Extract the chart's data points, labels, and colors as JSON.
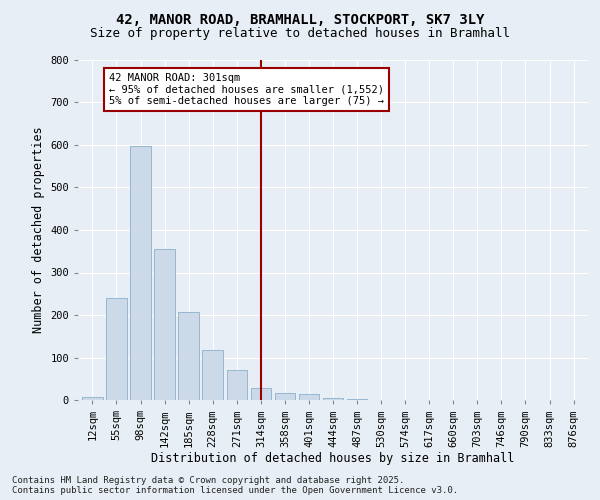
{
  "title": "42, MANOR ROAD, BRAMHALL, STOCKPORT, SK7 3LY",
  "subtitle": "Size of property relative to detached houses in Bramhall",
  "xlabel": "Distribution of detached houses by size in Bramhall",
  "ylabel": "Number of detached properties",
  "bar_labels": [
    "12sqm",
    "55sqm",
    "98sqm",
    "142sqm",
    "185sqm",
    "228sqm",
    "271sqm",
    "314sqm",
    "358sqm",
    "401sqm",
    "444sqm",
    "487sqm",
    "530sqm",
    "574sqm",
    "617sqm",
    "660sqm",
    "703sqm",
    "746sqm",
    "790sqm",
    "833sqm",
    "876sqm"
  ],
  "bar_values": [
    8,
    240,
    598,
    355,
    207,
    118,
    70,
    28,
    17,
    13,
    5,
    3,
    0,
    0,
    0,
    0,
    0,
    0,
    0,
    0,
    0
  ],
  "bar_color": "#ccd9e8",
  "bar_edgecolor": "#8ab0cc",
  "vline_x": 7.0,
  "vline_color": "#990000",
  "ylim": [
    0,
    800
  ],
  "yticks": [
    0,
    100,
    200,
    300,
    400,
    500,
    600,
    700,
    800
  ],
  "annotation_text": "42 MANOR ROAD: 301sqm\n← 95% of detached houses are smaller (1,552)\n5% of semi-detached houses are larger (75) →",
  "annotation_box_facecolor": "#ffffff",
  "annotation_box_edgecolor": "#990000",
  "footer_line1": "Contains HM Land Registry data © Crown copyright and database right 2025.",
  "footer_line2": "Contains public sector information licensed under the Open Government Licence v3.0.",
  "background_color": "#e8eef5",
  "plot_bg_color": "#e8eef5",
  "grid_color": "#ffffff",
  "title_fontsize": 10,
  "subtitle_fontsize": 9,
  "xlabel_fontsize": 8.5,
  "ylabel_fontsize": 8.5,
  "tick_fontsize": 7.5,
  "footer_fontsize": 6.5,
  "annotation_fontsize": 7.5
}
